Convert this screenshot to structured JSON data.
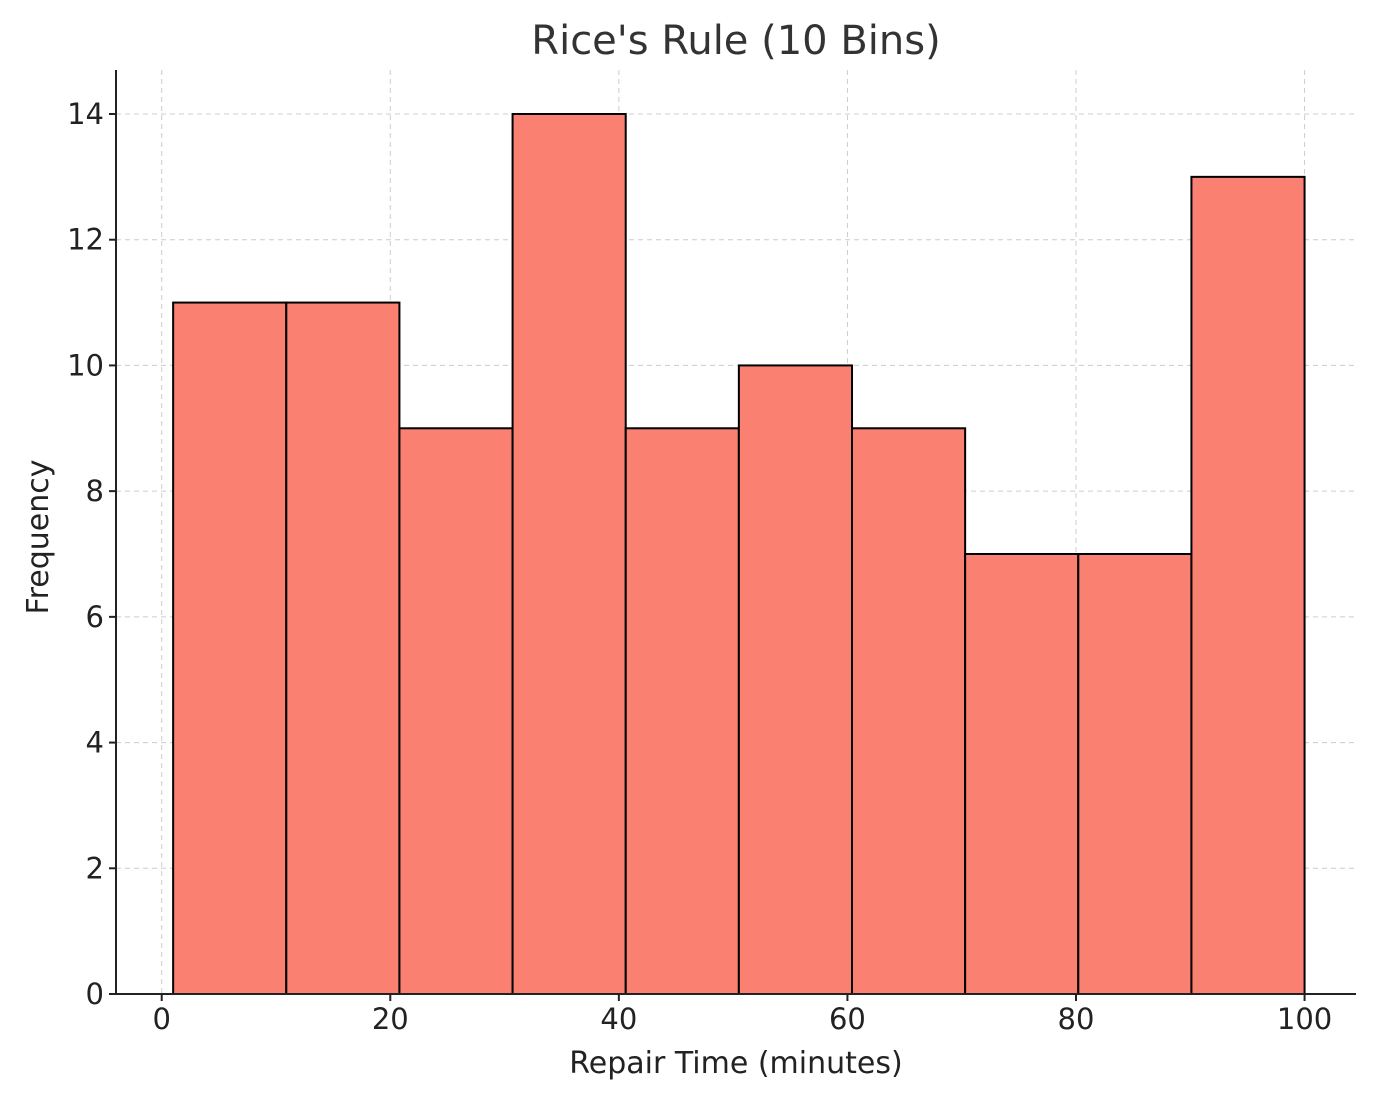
{
  "chart_data": {
    "type": "bar",
    "title": "Rice's Rule (10 Bins)",
    "xlabel": "Repair Time (minutes)",
    "ylabel": "Frequency",
    "bins": [
      {
        "start": 1.0,
        "end": 10.9,
        "count": 11
      },
      {
        "start": 10.9,
        "end": 20.8,
        "count": 11
      },
      {
        "start": 20.8,
        "end": 30.7,
        "count": 9
      },
      {
        "start": 30.7,
        "end": 40.6,
        "count": 14
      },
      {
        "start": 40.6,
        "end": 50.5,
        "count": 9
      },
      {
        "start": 50.5,
        "end": 60.4,
        "count": 10
      },
      {
        "start": 60.4,
        "end": 70.3,
        "count": 9
      },
      {
        "start": 70.3,
        "end": 80.2,
        "count": 7
      },
      {
        "start": 80.2,
        "end": 90.1,
        "count": 7
      },
      {
        "start": 90.1,
        "end": 100.0,
        "count": 13
      }
    ],
    "xlim": [
      -4,
      104.5
    ],
    "ylim": [
      0,
      14.7
    ],
    "xticks": [
      0,
      20,
      40,
      60,
      80,
      100
    ],
    "yticks": [
      0,
      2,
      4,
      6,
      8,
      10,
      12,
      14
    ],
    "grid": true,
    "bar_color": "#FA8072",
    "edge_color": "#000000"
  }
}
